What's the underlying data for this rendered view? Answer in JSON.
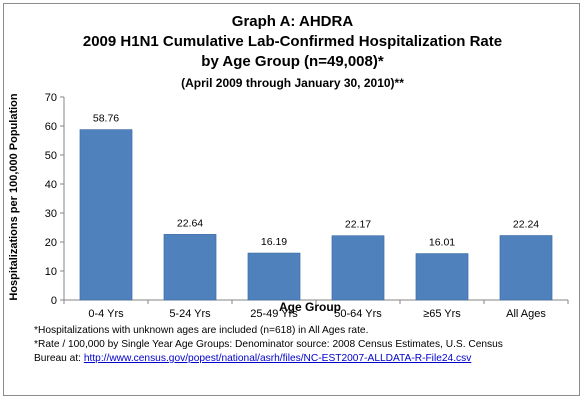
{
  "title_lines": [
    "Graph A: AHDRA",
    "2009 H1N1 Cumulative Lab-Confirmed Hospitalization Rate",
    "by Age Group (n=49,008)*",
    "(April 2009 through January 30, 2010)**"
  ],
  "footnotes": {
    "note1": "*Hospitalizations with unknown ages are included (n=618) in All Ages rate.",
    "note2": "*Rate / 100,000 by Single Year Age Groups: Denominator source: 2008 Census Estimates, U.S. Census",
    "note3_prefix": "Bureau at: ",
    "note3_link": "http://www.census.gov/popest/national/asrh/files/NC-EST2007-ALLDATA-R-File24.csv"
  },
  "colors": {
    "bar": "#4f81bd",
    "bar_edge": "#3b6aa0",
    "axis": "#868686"
  },
  "chart_data": {
    "type": "bar",
    "categories": [
      "0-4 Yrs",
      "5-24 Yrs",
      "25-49 Yrs",
      "50-64 Yrs",
      "≥65 Yrs",
      "All Ages"
    ],
    "values": [
      58.76,
      22.64,
      16.19,
      22.17,
      16.01,
      22.24
    ],
    "data_labels": [
      "58.76",
      "22.64",
      "16.19",
      "22.17",
      "16.01",
      "22.24"
    ],
    "xlabel": "Age Group",
    "ylabel": "Hospitalizations per 100,000 Population",
    "ylim": [
      0,
      70
    ],
    "yticks": [
      0,
      10,
      20,
      30,
      40,
      50,
      60,
      70
    ],
    "grid": false,
    "legend": "none"
  }
}
